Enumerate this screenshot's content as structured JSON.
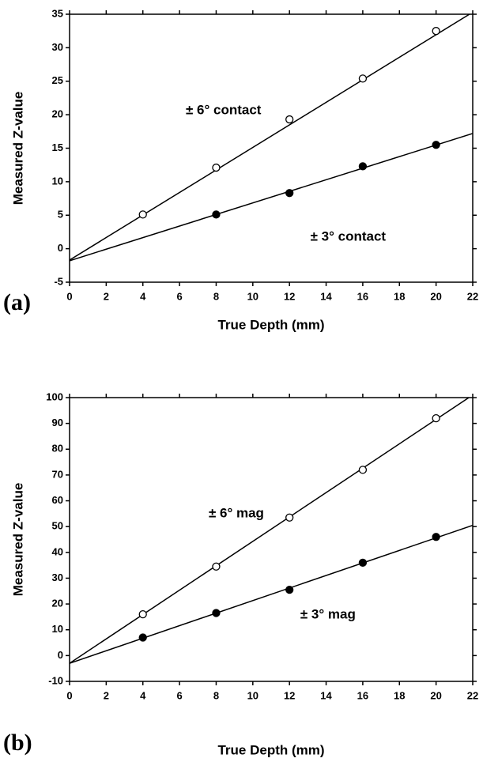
{
  "chart_data": [
    {
      "type": "scatter",
      "label": "(a)",
      "xlabel": "True Depth (mm)",
      "ylabel": "Measured Z-value",
      "xlim": [
        0,
        22
      ],
      "xticks": [
        0,
        2,
        4,
        6,
        8,
        10,
        12,
        14,
        16,
        18,
        20,
        22
      ],
      "ylim": [
        -5,
        35
      ],
      "yticks": [
        -5,
        0,
        5,
        10,
        15,
        20,
        25,
        30,
        35
      ],
      "grid": false,
      "series": [
        {
          "name": "± 6° contact",
          "marker": "open",
          "color": "#000000",
          "x": [
            4,
            8,
            12,
            16,
            20
          ],
          "values": [
            5.1,
            12.1,
            19.3,
            25.4,
            32.5
          ],
          "fit_x": [
            0,
            22
          ],
          "fit_values": [
            -1.7,
            35.3
          ]
        },
        {
          "name": "± 3° contact",
          "marker": "filled",
          "color": "#000000",
          "x": [
            8,
            12,
            16,
            20
          ],
          "values": [
            5.1,
            8.3,
            12.3,
            15.5
          ],
          "fit_x": [
            0,
            22
          ],
          "fit_values": [
            -1.8,
            17.2
          ]
        }
      ]
    },
    {
      "type": "scatter",
      "label": "(b)",
      "xlabel": "True Depth (mm)",
      "ylabel": "Measured Z-value",
      "xlim": [
        0,
        22
      ],
      "xticks": [
        0,
        2,
        4,
        6,
        8,
        10,
        12,
        14,
        16,
        18,
        20,
        22
      ],
      "ylim": [
        -10,
        100
      ],
      "yticks": [
        -10,
        0,
        10,
        20,
        30,
        40,
        50,
        60,
        70,
        80,
        90,
        100
      ],
      "grid": false,
      "series": [
        {
          "name": "± 6° mag",
          "marker": "open",
          "color": "#000000",
          "x": [
            4,
            8,
            12,
            16,
            20
          ],
          "values": [
            16,
            34.5,
            53.5,
            72,
            92
          ],
          "fit_x": [
            0,
            22
          ],
          "fit_values": [
            -3,
            101
          ]
        },
        {
          "name": "± 3° mag",
          "marker": "filled",
          "color": "#000000",
          "x": [
            4,
            8,
            12,
            16,
            20
          ],
          "values": [
            7,
            16.5,
            25.5,
            36,
            46
          ],
          "fit_x": [
            0,
            22
          ],
          "fit_values": [
            -3,
            50.5
          ]
        }
      ]
    }
  ]
}
